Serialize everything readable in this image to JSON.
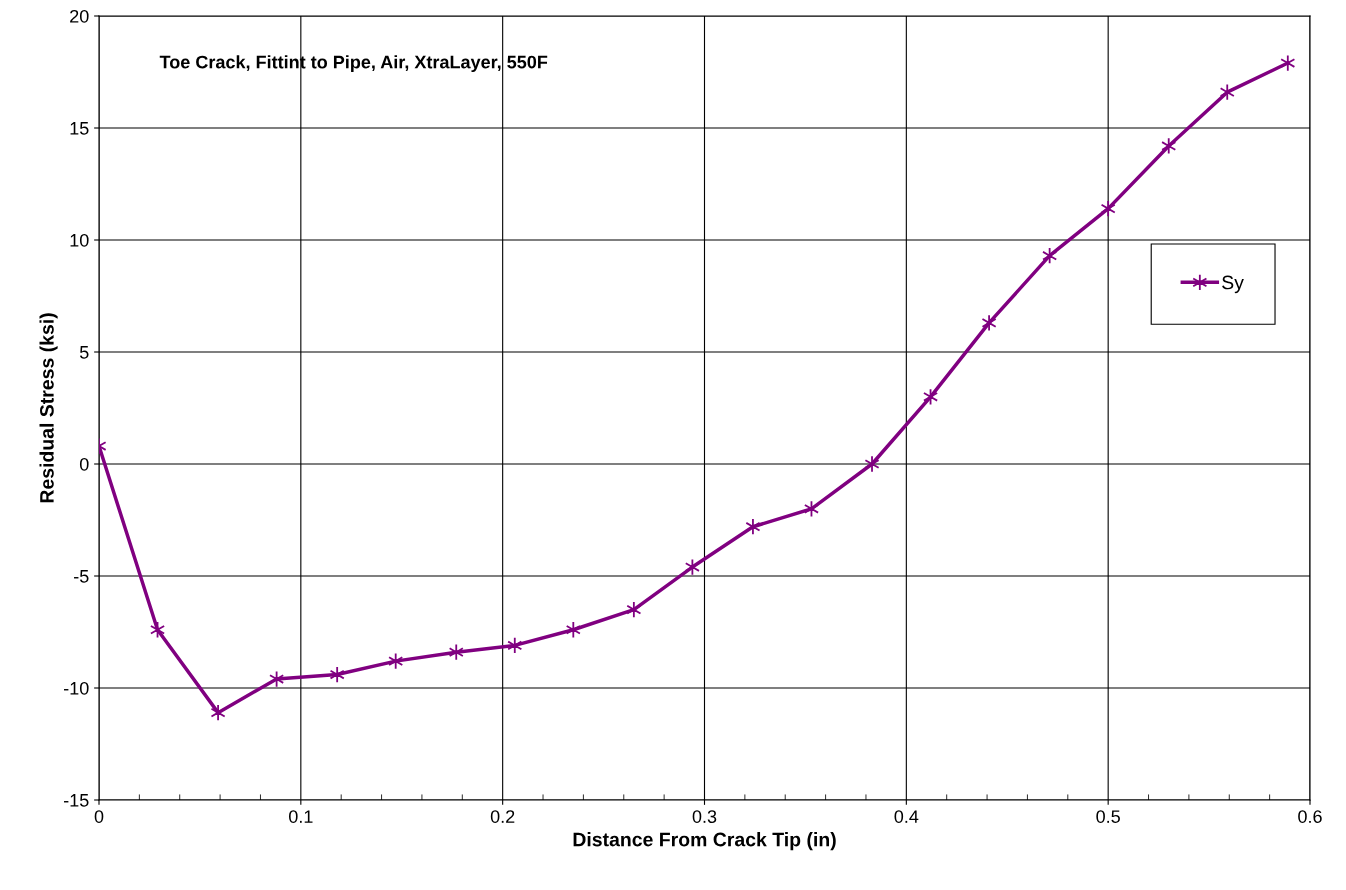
{
  "chart_data": {
    "type": "line",
    "xlabel": "Distance From Crack Tip (in)",
    "ylabel": "Residual Stress (ksi)",
    "annotations": [
      {
        "text": "Toe Crack, Fittint to Pipe, Air, XtraLayer, 550F"
      }
    ],
    "x": [
      0,
      0.029,
      0.059,
      0.088,
      0.118,
      0.147,
      0.177,
      0.206,
      0.235,
      0.265,
      0.294,
      0.324,
      0.353,
      0.383,
      0.412,
      0.441,
      0.471,
      0.5,
      0.53,
      0.559,
      0.589
    ],
    "series": [
      {
        "name": "Sy",
        "color": "#800080",
        "values": [
          0.8,
          -7.4,
          -11.1,
          -9.6,
          -9.4,
          -8.8,
          -8.4,
          -8.1,
          -7.4,
          -6.5,
          -4.6,
          -2.8,
          -2.0,
          0.0,
          3.0,
          6.3,
          9.3,
          11.4,
          14.2,
          16.6,
          17.9
        ]
      }
    ],
    "xlim": [
      0,
      0.6
    ],
    "xticks": [
      0,
      0.1,
      0.2,
      0.3,
      0.4,
      0.5,
      0.6
    ],
    "ylim": [
      -15,
      20
    ],
    "yticks": [
      -15,
      -10,
      -5,
      0,
      5,
      10,
      15,
      20
    ],
    "grid": true,
    "legend": "right",
    "marker": "cross",
    "line_style": "solid"
  }
}
